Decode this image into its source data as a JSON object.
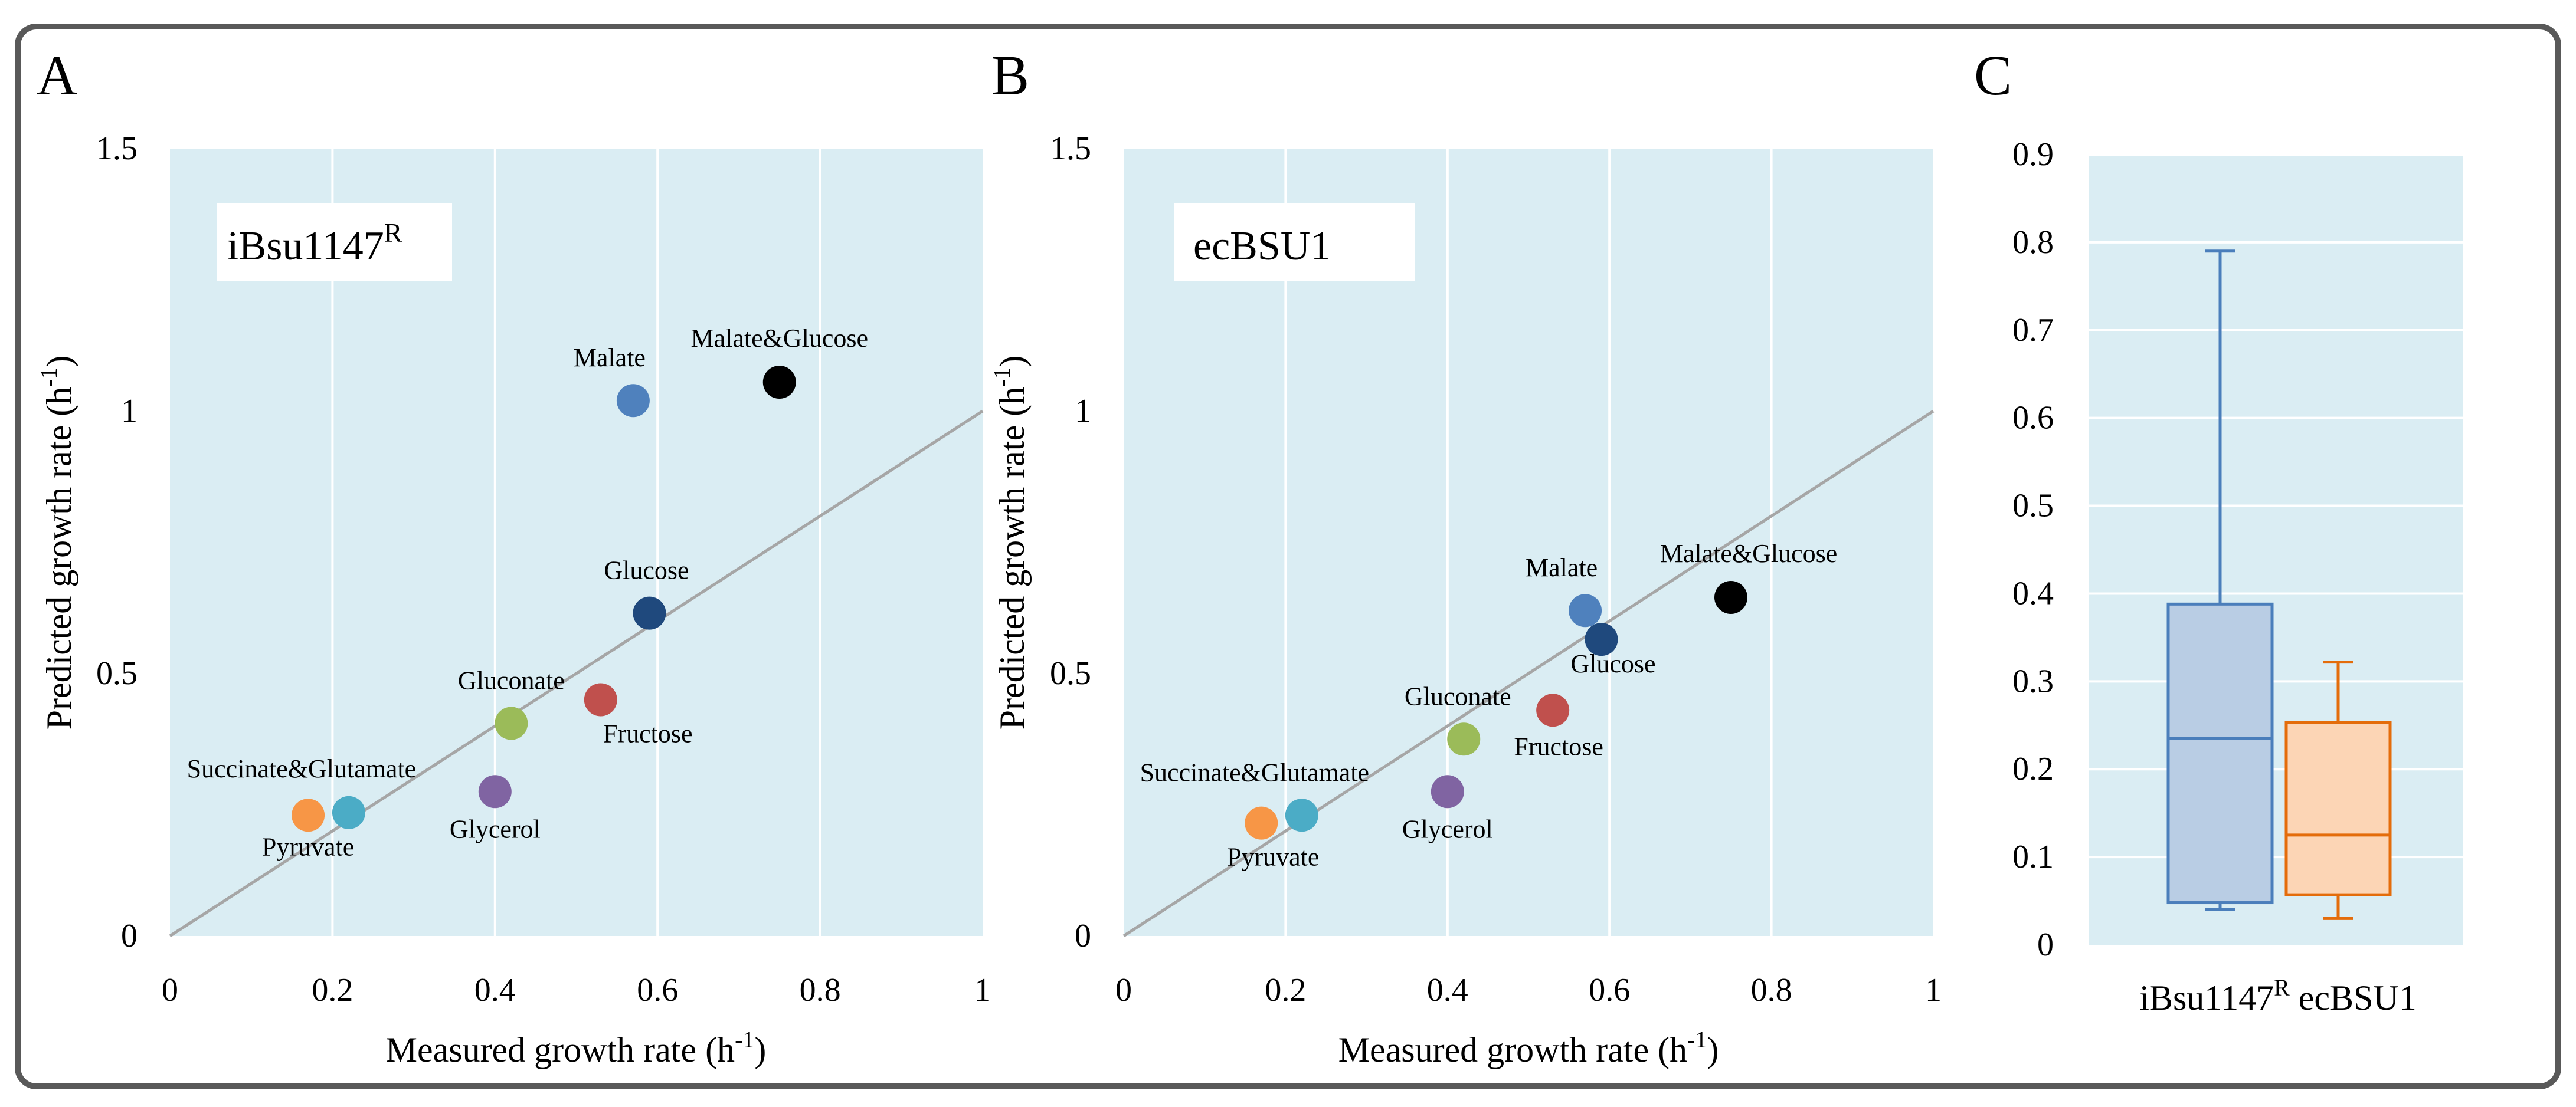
{
  "colors": {
    "plot_bg": "#daedf3",
    "grid": "#ffffff",
    "frame": "#595959",
    "diagonal": "#a6a6a6"
  },
  "chart_data": [
    {
      "panel": "A",
      "type": "scatter",
      "inset_label": {
        "main": "iBsu1147",
        "sup": "R"
      },
      "xlabel": {
        "main": "Measured growth rate (h",
        "sup": "-1",
        "end": ")"
      },
      "ylabel": {
        "main": "Predicted growth rate (h",
        "sup": "-1",
        "end": ")"
      },
      "xlim": [
        0,
        1
      ],
      "ylim": [
        0,
        1.5
      ],
      "xticks": [
        "0",
        "0.2",
        "0.4",
        "0.6",
        "0.8",
        "1"
      ],
      "yticks": [
        "0",
        "0.5",
        "1",
        "1.5"
      ],
      "grid": "vertical",
      "diagonal": true,
      "points": [
        {
          "x": 0.17,
          "y": 0.23,
          "color": "#f79646",
          "label": "Pyruvate"
        },
        {
          "x": 0.22,
          "y": 0.235,
          "color": "#4bacc6",
          "label": "Succinate&Glutamate"
        },
        {
          "x": 0.4,
          "y": 0.275,
          "color": "#8064a2",
          "label": "Glycerol"
        },
        {
          "x": 0.42,
          "y": 0.405,
          "color": "#9bbb59",
          "label": "Gluconate"
        },
        {
          "x": 0.53,
          "y": 0.45,
          "color": "#c0504d",
          "label": "Fructose"
        },
        {
          "x": 0.59,
          "y": 0.615,
          "color": "#1f497d",
          "label": "Glucose"
        },
        {
          "x": 0.57,
          "y": 1.02,
          "color": "#4f81bd",
          "label": "Malate"
        },
        {
          "x": 0.75,
          "y": 1.055,
          "color": "#000000",
          "label": "Malate&Glucose"
        }
      ]
    },
    {
      "panel": "B",
      "type": "scatter",
      "inset_label": {
        "main": "ecBSU1",
        "sup": ""
      },
      "xlabel": {
        "main": "Measured growth rate (h",
        "sup": "-1",
        "end": ")"
      },
      "ylabel": {
        "main": "Predicted growth rate (h",
        "sup": "-1",
        "end": ")"
      },
      "xlim": [
        0,
        1
      ],
      "ylim": [
        0,
        1.5
      ],
      "xticks": [
        "0",
        "0.2",
        "0.4",
        "0.6",
        "0.8",
        "1"
      ],
      "yticks": [
        "0",
        "0.5",
        "1",
        "1.5"
      ],
      "grid": "vertical",
      "diagonal": true,
      "points": [
        {
          "x": 0.17,
          "y": 0.215,
          "color": "#f79646",
          "label": "Pyruvate"
        },
        {
          "x": 0.22,
          "y": 0.23,
          "color": "#4bacc6",
          "label": "Succinate&Glutamate"
        },
        {
          "x": 0.4,
          "y": 0.275,
          "color": "#8064a2",
          "label": "Glycerol"
        },
        {
          "x": 0.42,
          "y": 0.375,
          "color": "#9bbb59",
          "label": "Gluconate"
        },
        {
          "x": 0.53,
          "y": 0.43,
          "color": "#c0504d",
          "label": "Fructose"
        },
        {
          "x": 0.59,
          "y": 0.565,
          "color": "#1f497d",
          "label": "Glucose"
        },
        {
          "x": 0.57,
          "y": 0.62,
          "color": "#4f81bd",
          "label": "Malate"
        },
        {
          "x": 0.75,
          "y": 0.645,
          "color": "#000000",
          "label": "Malate&Glucose"
        }
      ]
    },
    {
      "panel": "C",
      "type": "box",
      "ylim": [
        0,
        0.9
      ],
      "yticks": [
        "0",
        "0.1",
        "0.2",
        "0.3",
        "0.4",
        "0.5",
        "0.6",
        "0.7",
        "0.8",
        "0.9"
      ],
      "grid": "horizontal",
      "category_label": {
        "a": "iBsu1147",
        "sup": "R",
        "b": " ecBSU1"
      },
      "boxes": [
        {
          "name": "iBsu1147R",
          "min": 0.04,
          "q1": 0.048,
          "median": 0.235,
          "q3": 0.388,
          "max": 0.79,
          "color": "#4a7ebb",
          "fill": "#b9cde4"
        },
        {
          "name": "ecBSU1",
          "min": 0.03,
          "q1": 0.057,
          "median": 0.125,
          "q3": 0.253,
          "max": 0.322,
          "color": "#e46c0a",
          "fill": "#fcd5b5"
        }
      ]
    }
  ]
}
